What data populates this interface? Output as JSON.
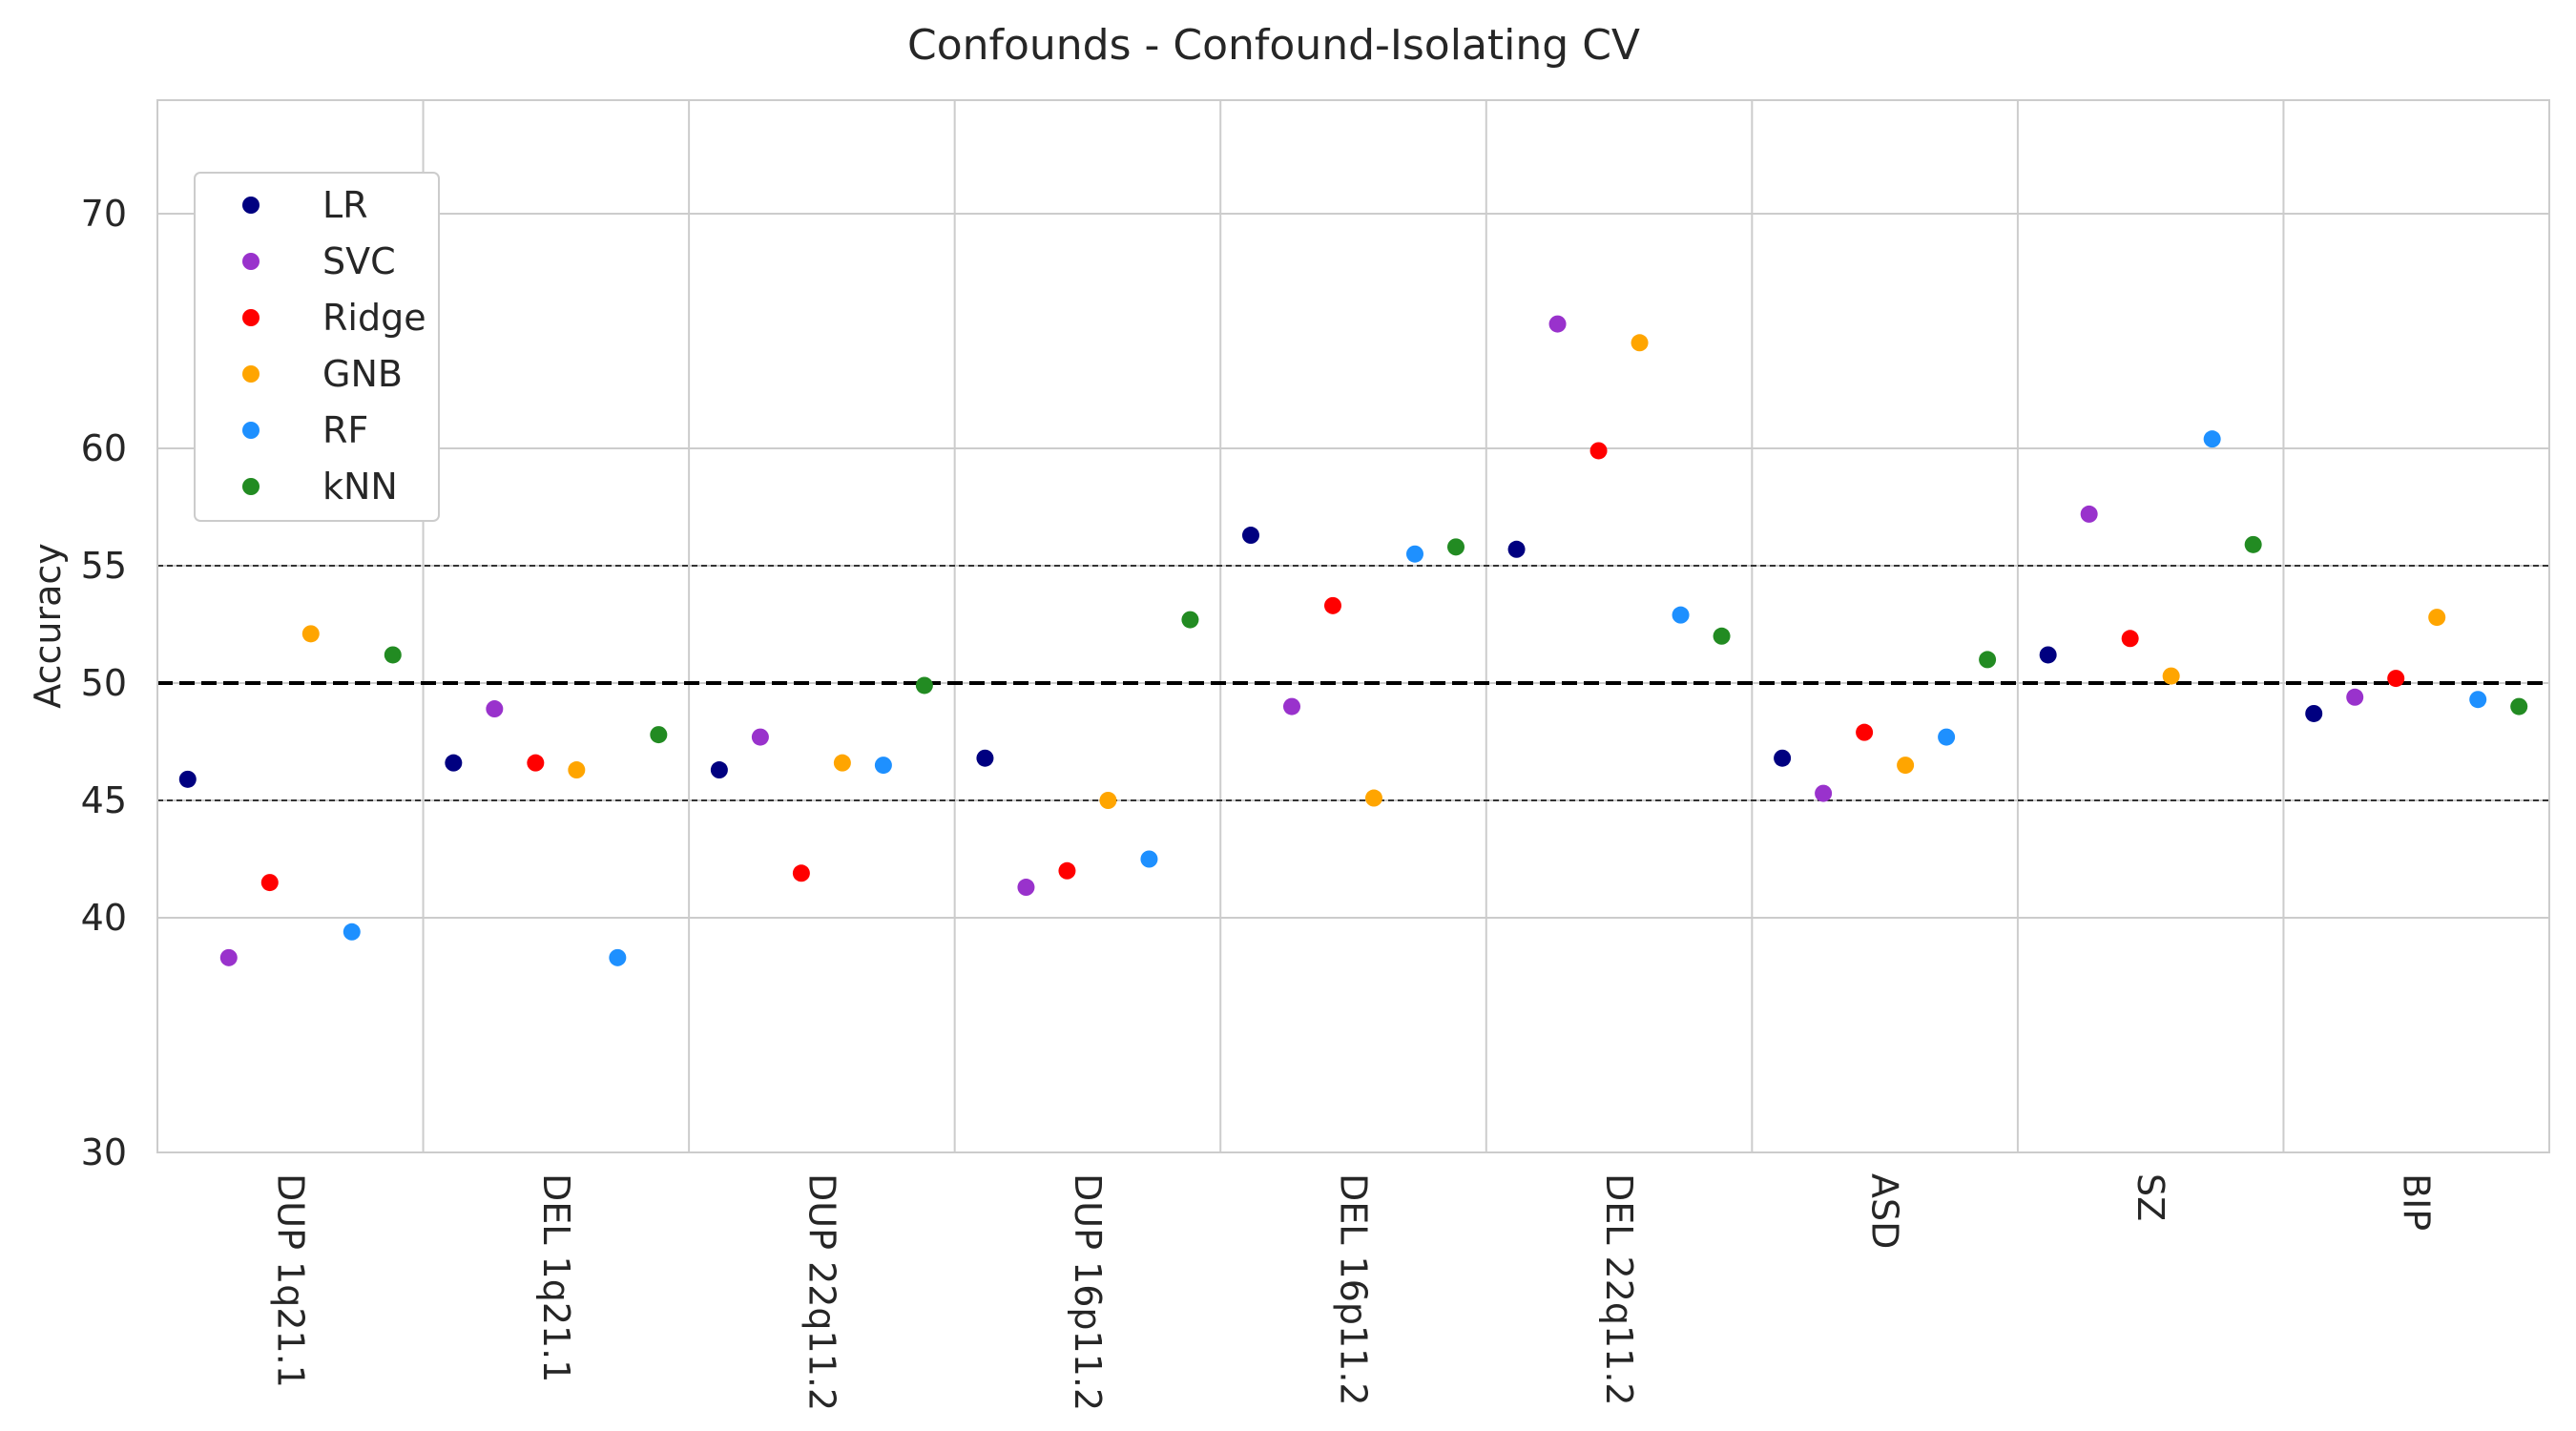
{
  "chart_data": {
    "type": "scatter",
    "title": "Confounds - Confound-Isolating CV",
    "ylabel": "Accuracy",
    "xlabel": "",
    "ylim": [
      30,
      75
    ],
    "yscale": "nonuniform",
    "yticks": [
      30,
      40,
      45,
      50,
      55,
      60,
      70
    ],
    "grid": true,
    "legend_position": "upper-left",
    "reference_lines": [
      {
        "y": 50,
        "style": "dashed-thick"
      },
      {
        "y": 45,
        "style": "dashed-thin"
      },
      {
        "y": 55,
        "style": "dashed-thin"
      }
    ],
    "categories": [
      "DUP 1q21.1",
      "DEL 1q21.1",
      "DUP 22q11.2",
      "DUP 16p11.2",
      "DEL 16p11.2",
      "DEL 22q11.2",
      "ASD",
      "SZ",
      "BIP"
    ],
    "series": [
      {
        "name": "LR",
        "color": "#000080",
        "values": [
          45.9,
          46.6,
          46.3,
          46.8,
          56.3,
          55.7,
          46.8,
          51.2,
          48.7
        ]
      },
      {
        "name": "SVC",
        "color": "#9932CC",
        "values": [
          38.3,
          48.9,
          47.7,
          41.3,
          49.0,
          65.3,
          45.3,
          57.2,
          49.4
        ]
      },
      {
        "name": "Ridge",
        "color": "#FF0000",
        "values": [
          41.5,
          46.6,
          41.9,
          42.0,
          53.3,
          59.9,
          47.9,
          51.9,
          50.2
        ]
      },
      {
        "name": "GNB",
        "color": "#FFA500",
        "values": [
          52.1,
          46.3,
          46.6,
          45.0,
          45.1,
          64.5,
          46.5,
          50.3,
          52.8
        ]
      },
      {
        "name": "RF",
        "color": "#1E90FF",
        "values": [
          39.4,
          38.3,
          46.5,
          42.5,
          55.5,
          52.9,
          47.7,
          60.4,
          49.3
        ]
      },
      {
        "name": "kNN",
        "color": "#228B22",
        "values": [
          51.2,
          47.8,
          49.9,
          52.7,
          55.8,
          52.0,
          51.0,
          55.9,
          49.0
        ]
      }
    ]
  }
}
